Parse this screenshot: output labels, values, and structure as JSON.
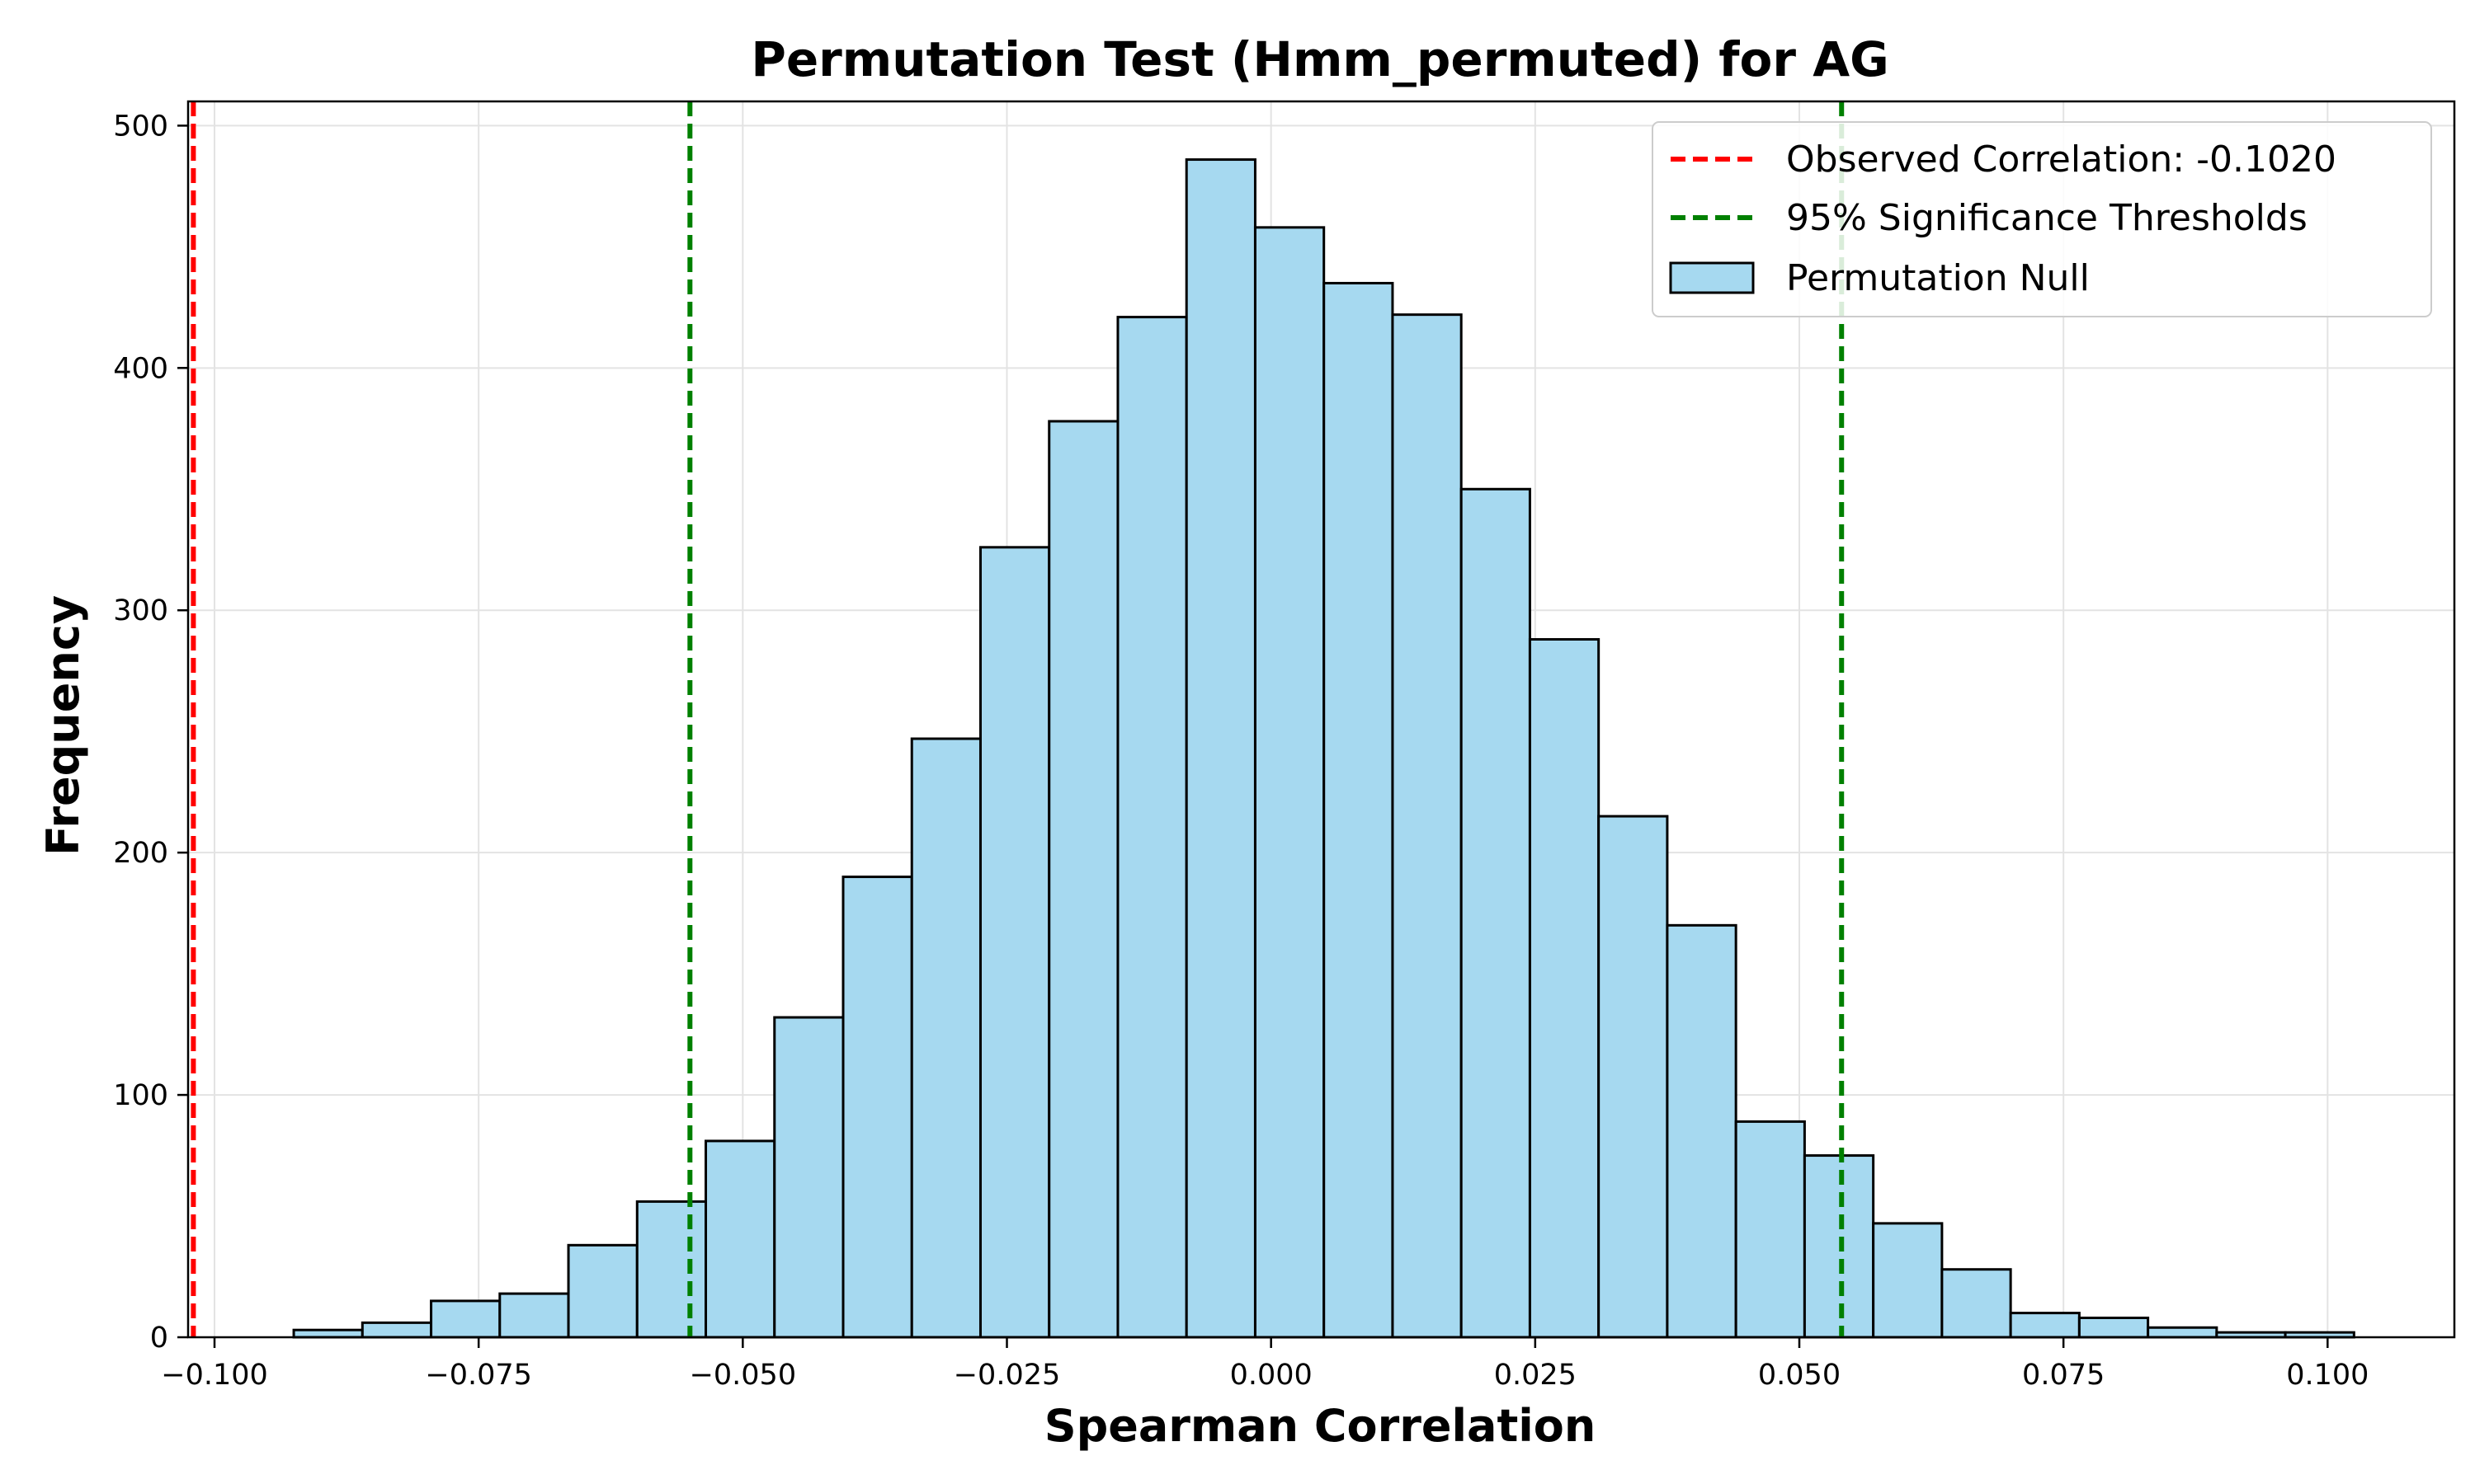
{
  "chart_data": {
    "type": "bar",
    "title": "Permutation Test (Hmm_permuted) for AG",
    "xlabel": "Spearman Correlation",
    "ylabel": "Frequency",
    "xlim": [
      -0.1025,
      0.112
    ],
    "ylim": [
      0,
      510
    ],
    "x_ticks": [
      -0.1,
      -0.075,
      -0.05,
      -0.025,
      0.0,
      0.025,
      0.05,
      0.075,
      0.1
    ],
    "x_tick_labels": [
      "−0.100",
      "−0.075",
      "−0.050",
      "−0.025",
      "0.000",
      "0.025",
      "0.050",
      "0.075",
      "0.100"
    ],
    "y_ticks": [
      0,
      100,
      200,
      300,
      400,
      500
    ],
    "y_tick_labels": [
      "0",
      "100",
      "200",
      "300",
      "400",
      "500"
    ],
    "grid": true,
    "legend_position": "top-right",
    "histogram": {
      "name": "Permutation Null",
      "bin_edges": [
        -0.0925,
        -0.086,
        -0.0795,
        -0.073,
        -0.0665,
        -0.06,
        -0.0535,
        -0.047,
        -0.0405,
        -0.034,
        -0.0275,
        -0.021,
        -0.0145,
        -0.008,
        -0.0015,
        0.005,
        0.0115,
        0.018,
        0.0245,
        0.031,
        0.0375,
        0.044,
        0.0505,
        0.057,
        0.0635,
        0.07,
        0.0765,
        0.083,
        0.0895,
        0.096,
        0.1025
      ],
      "counts": [
        3,
        6,
        15,
        18,
        38,
        56,
        81,
        132,
        190,
        247,
        326,
        378,
        421,
        486,
        458,
        435,
        422,
        350,
        288,
        215,
        170,
        89,
        75,
        47,
        28,
        10,
        8,
        4,
        2,
        2
      ],
      "fill": "#a6d9f0",
      "edge": "#000000"
    },
    "reference_lines": [
      {
        "name": "Observed Correlation: -0.1020",
        "legend_label": "Observed Correlation: -0.1020",
        "x": [
          -0.102
        ],
        "color": "#ff0000",
        "style": "dashed"
      },
      {
        "name": "95% Significance Thresholds",
        "legend_label": "95% Significance Thresholds",
        "x": [
          -0.055,
          0.054
        ],
        "color": "#008000",
        "style": "dashed"
      }
    ]
  }
}
